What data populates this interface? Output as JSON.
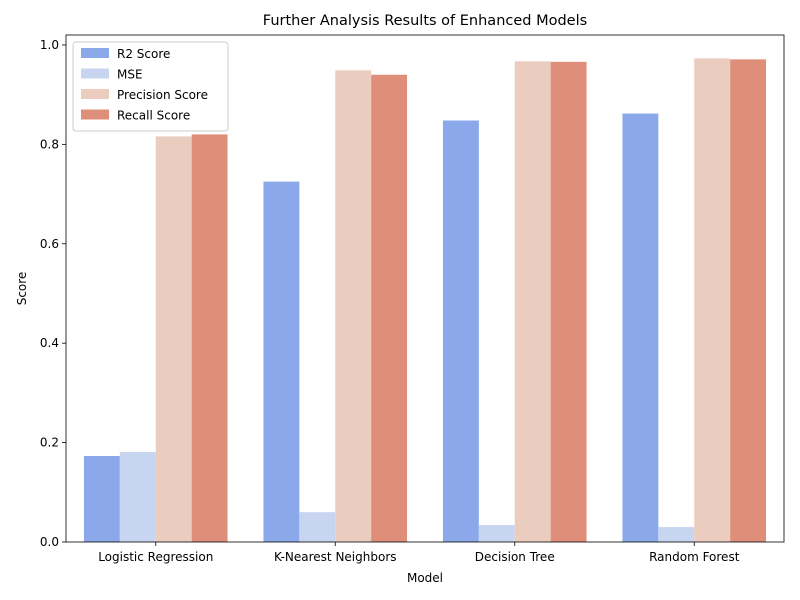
{
  "chart_data": {
    "type": "bar",
    "title": "Further Analysis Results of Enhanced Models",
    "xlabel": "Model",
    "ylabel": "Score",
    "categories": [
      "Logistic Regression",
      "K-Nearest Neighbors",
      "Decision Tree",
      "Random Forest"
    ],
    "series": [
      {
        "name": "R2 Score",
        "color": "#8aa8ea",
        "values": [
          0.173,
          0.725,
          0.848,
          0.862
        ]
      },
      {
        "name": "MSE",
        "color": "#c7d5f0",
        "values": [
          0.181,
          0.06,
          0.034,
          0.03
        ]
      },
      {
        "name": "Precision Score",
        "color": "#ebcdc0",
        "values": [
          0.816,
          0.949,
          0.967,
          0.973
        ]
      },
      {
        "name": "Recall Score",
        "color": "#df8f79",
        "values": [
          0.82,
          0.94,
          0.966,
          0.971
        ]
      }
    ],
    "ylim": [
      0.0,
      1.02
    ],
    "yticks": [
      "0.0",
      "0.2",
      "0.4",
      "0.6",
      "0.8",
      "1.0"
    ],
    "grid": false,
    "legend_position": "top-left"
  }
}
